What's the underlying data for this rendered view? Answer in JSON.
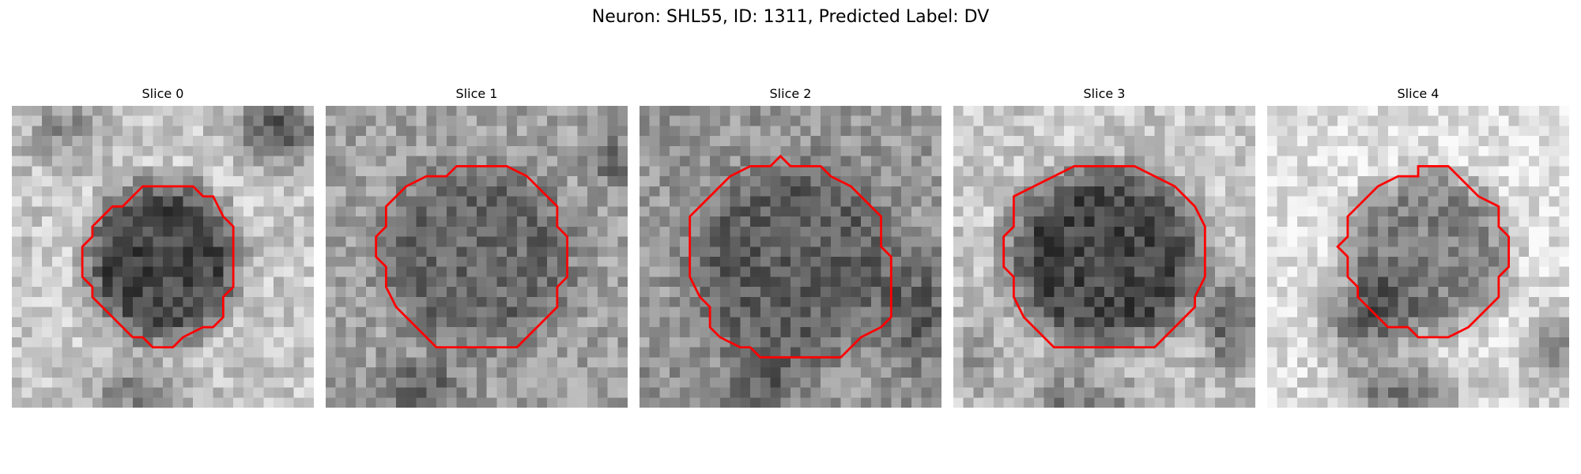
{
  "figure": {
    "title": "Neuron: SHL55, ID: 1311, Predicted Label: DV"
  },
  "colors": {
    "contour": "#ff0000"
  },
  "panels": [
    {
      "title": "Slice 0",
      "index": 0
    },
    {
      "title": "Slice 1",
      "index": 1
    },
    {
      "title": "Slice 2",
      "index": 2
    },
    {
      "title": "Slice 3",
      "index": 3
    },
    {
      "title": "Slice 4",
      "index": 4
    }
  ]
}
